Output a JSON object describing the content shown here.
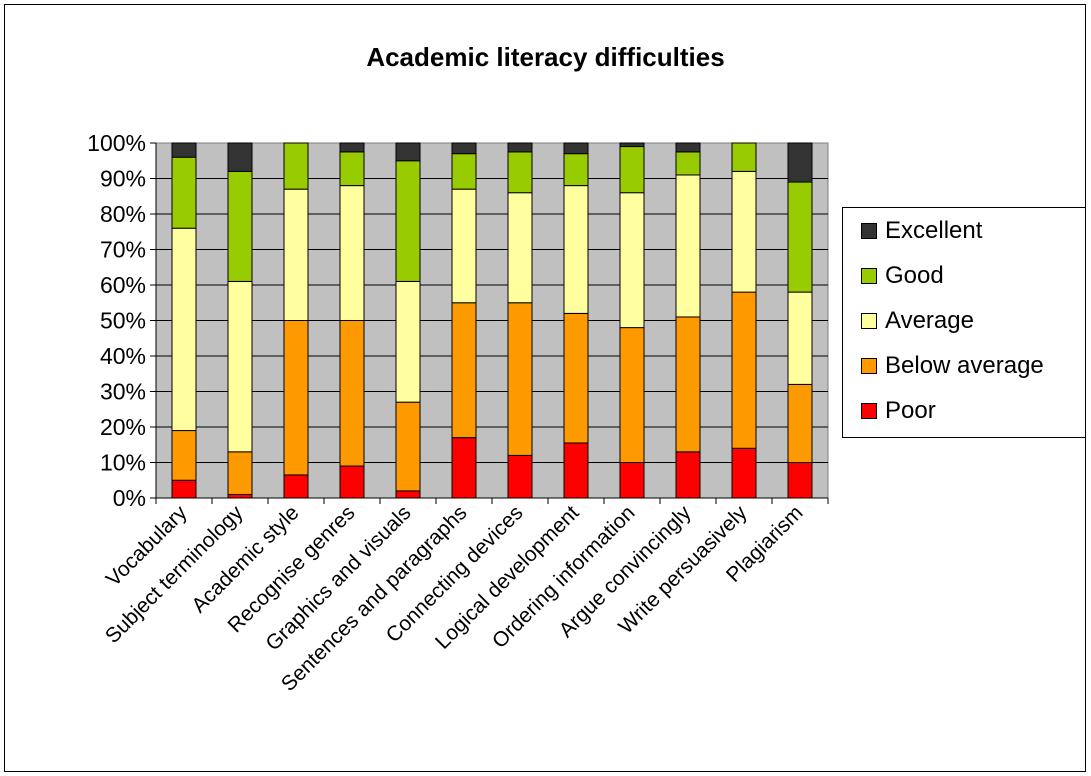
{
  "chart_data": {
    "type": "bar",
    "stacked": true,
    "normalized": true,
    "title": "Academic literacy difficulties",
    "categories": [
      "Vocabulary",
      "Subject terminology",
      "Academic style",
      "Recognise genres",
      "Graphics and visuals",
      "Sentences and paragraphs",
      "Connecting devices",
      "Logical development",
      "Ordering information",
      "Argue convincingly",
      "Write persuasively",
      "Plagiarism"
    ],
    "series": [
      {
        "name": "Poor",
        "color": "#ff0000",
        "values": [
          5,
          1,
          6.5,
          9,
          2,
          17,
          12,
          15.5,
          10,
          13,
          14,
          10
        ]
      },
      {
        "name": "Below average",
        "color": "#ff9900",
        "values": [
          14,
          12,
          43.5,
          41,
          25,
          38,
          43,
          36.5,
          38,
          38,
          44,
          22
        ]
      },
      {
        "name": "Average",
        "color": "#ffffa0",
        "values": [
          57,
          48,
          37,
          38,
          34,
          32,
          31,
          36,
          38,
          40,
          34,
          26
        ]
      },
      {
        "name": "Good",
        "color": "#99cc00",
        "values": [
          20,
          31,
          13,
          9.5,
          34,
          10,
          11.5,
          9,
          13,
          6.5,
          8,
          31
        ]
      },
      {
        "name": "Excellent",
        "color": "#333333",
        "values": [
          4,
          8,
          0,
          2.5,
          5,
          3,
          2.5,
          3,
          1,
          2.5,
          0,
          11
        ]
      }
    ],
    "yticks": [
      "0%",
      "10%",
      "20%",
      "30%",
      "40%",
      "50%",
      "60%",
      "70%",
      "80%",
      "90%",
      "100%"
    ],
    "ylim": [
      0,
      100
    ],
    "plot_background": "#c0c0c0",
    "grid": true,
    "legend": {
      "position": "right",
      "order": [
        "Excellent",
        "Good",
        "Average",
        "Below average",
        "Poor"
      ]
    }
  }
}
